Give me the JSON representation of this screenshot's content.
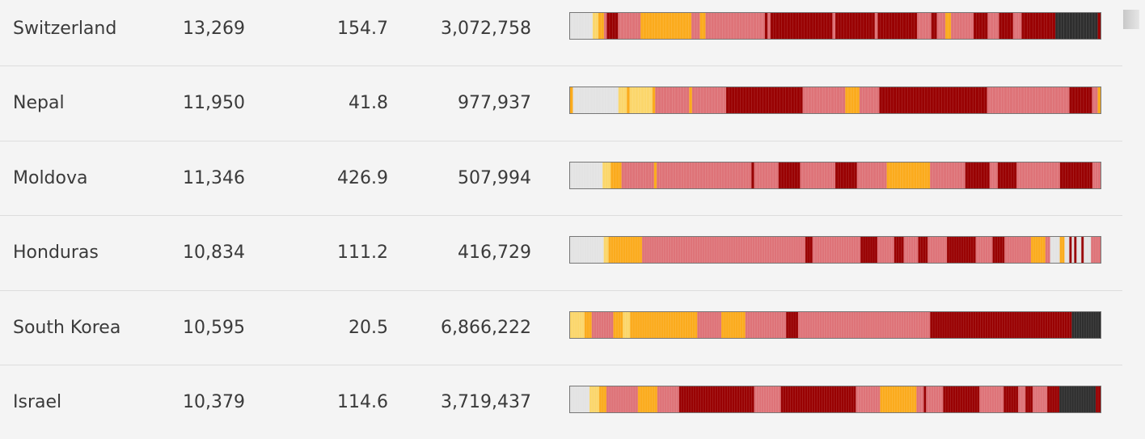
{
  "palette": {
    "none": "#e3e3e3",
    "very_low": "#fbd66b",
    "low": "#fbab1d",
    "medium": "#de7378",
    "high": "#990102",
    "very_high": "#2e2e2e"
  },
  "rows": [
    {
      "country": "Switzerland",
      "cases": "13,269",
      "rate": "154.7",
      "tests": "3,072,758",
      "timeline": [
        [
          "none",
          8
        ],
        [
          "very_low",
          2
        ],
        [
          "low",
          2
        ],
        [
          "medium",
          1
        ],
        [
          "high",
          4
        ],
        [
          "medium",
          8
        ],
        [
          "low",
          18
        ],
        [
          "medium",
          3
        ],
        [
          "low",
          2
        ],
        [
          "medium",
          21
        ],
        [
          "high",
          1
        ],
        [
          "medium",
          1
        ],
        [
          "high",
          22
        ],
        [
          "medium",
          1
        ],
        [
          "high",
          14
        ],
        [
          "medium",
          1
        ],
        [
          "high",
          14
        ],
        [
          "medium",
          5
        ],
        [
          "high",
          2
        ],
        [
          "medium",
          3
        ],
        [
          "low",
          2
        ],
        [
          "medium",
          8
        ],
        [
          "high",
          5
        ],
        [
          "medium",
          4
        ],
        [
          "high",
          5
        ],
        [
          "medium",
          3
        ],
        [
          "high",
          12
        ],
        [
          "very_high",
          15
        ],
        [
          "high",
          1
        ]
      ]
    },
    {
      "country": "Nepal",
      "cases": "11,950",
      "rate": "41.8",
      "tests": "977,937",
      "timeline": [
        [
          "low",
          1
        ],
        [
          "none",
          16
        ],
        [
          "very_low",
          3
        ],
        [
          "low",
          1
        ],
        [
          "very_low",
          8
        ],
        [
          "low",
          1
        ],
        [
          "medium",
          12
        ],
        [
          "low",
          1
        ],
        [
          "medium",
          12
        ],
        [
          "high",
          27
        ],
        [
          "medium",
          15
        ],
        [
          "low",
          5
        ],
        [
          "medium",
          7
        ],
        [
          "high",
          38
        ],
        [
          "medium",
          29
        ],
        [
          "high",
          8
        ],
        [
          "medium",
          2
        ],
        [
          "low",
          1
        ]
      ]
    },
    {
      "country": "Moldova",
      "cases": "11,346",
      "rate": "426.9",
      "tests": "507,994",
      "timeline": [
        [
          "none",
          12
        ],
        [
          "very_low",
          3
        ],
        [
          "low",
          4
        ],
        [
          "medium",
          12
        ],
        [
          "low",
          1
        ],
        [
          "medium",
          35
        ],
        [
          "high",
          1
        ],
        [
          "medium",
          9
        ],
        [
          "high",
          8
        ],
        [
          "medium",
          13
        ],
        [
          "high",
          8
        ],
        [
          "medium",
          11
        ],
        [
          "low",
          16
        ],
        [
          "medium",
          13
        ],
        [
          "high",
          9
        ],
        [
          "medium",
          3
        ],
        [
          "high",
          7
        ],
        [
          "medium",
          16
        ],
        [
          "high",
          12
        ],
        [
          "medium",
          3
        ]
      ]
    },
    {
      "country": "Honduras",
      "cases": "10,834",
      "rate": "111.2",
      "tests": "416,729",
      "timeline": [
        [
          "none",
          14
        ],
        [
          "very_low",
          2
        ],
        [
          "low",
          14
        ],
        [
          "medium",
          68
        ],
        [
          "high",
          3
        ],
        [
          "medium",
          20
        ],
        [
          "high",
          7
        ],
        [
          "medium",
          7
        ],
        [
          "high",
          4
        ],
        [
          "medium",
          6
        ],
        [
          "high",
          4
        ],
        [
          "medium",
          8
        ],
        [
          "high",
          12
        ],
        [
          "medium",
          7
        ],
        [
          "high",
          5
        ],
        [
          "medium",
          11
        ],
        [
          "low",
          6
        ],
        [
          "medium",
          2
        ],
        [
          "none",
          4
        ],
        [
          "low",
          2
        ],
        [
          "none",
          2
        ],
        [
          "high",
          1
        ],
        [
          "none",
          1
        ],
        [
          "high",
          1
        ],
        [
          "none",
          2
        ],
        [
          "high",
          1
        ],
        [
          "none",
          3
        ],
        [
          "medium",
          4
        ]
      ]
    },
    {
      "country": "South Korea",
      "cases": "10,595",
      "rate": "20.5",
      "tests": "6,866,222",
      "timeline": [
        [
          "very_low",
          6
        ],
        [
          "low",
          3
        ],
        [
          "medium",
          9
        ],
        [
          "low",
          4
        ],
        [
          "very_low",
          3
        ],
        [
          "low",
          28
        ],
        [
          "medium",
          10
        ],
        [
          "low",
          10
        ],
        [
          "medium",
          17
        ],
        [
          "high",
          5
        ],
        [
          "medium",
          55
        ],
        [
          "high",
          59
        ],
        [
          "very_high",
          12
        ]
      ]
    },
    {
      "country": "Israel",
      "cases": "10,379",
      "rate": "114.6",
      "tests": "3,719,437",
      "timeline": [
        [
          "none",
          8
        ],
        [
          "very_low",
          4
        ],
        [
          "low",
          3
        ],
        [
          "medium",
          13
        ],
        [
          "low",
          8
        ],
        [
          "medium",
          9
        ],
        [
          "high",
          31
        ],
        [
          "medium",
          11
        ],
        [
          "high",
          31
        ],
        [
          "medium",
          10
        ],
        [
          "low",
          15
        ],
        [
          "medium",
          3
        ],
        [
          "high",
          1
        ],
        [
          "medium",
          7
        ],
        [
          "high",
          15
        ],
        [
          "medium",
          10
        ],
        [
          "high",
          6
        ],
        [
          "medium",
          3
        ],
        [
          "high",
          3
        ],
        [
          "medium",
          6
        ],
        [
          "high",
          5
        ],
        [
          "very_high",
          15
        ],
        [
          "high",
          2
        ]
      ]
    }
  ]
}
